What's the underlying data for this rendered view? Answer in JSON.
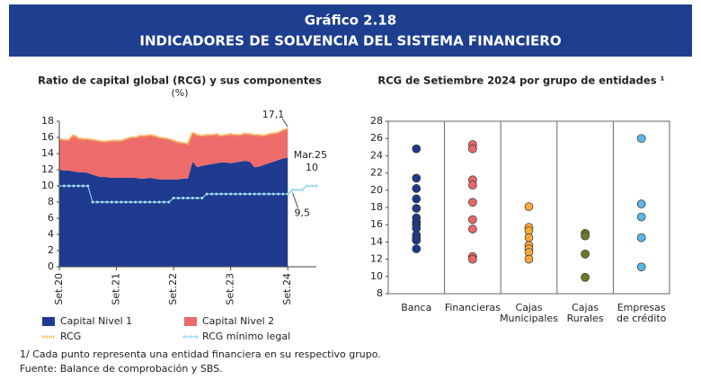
{
  "header": {
    "number": "Gráfico 2.18",
    "title": "INDICADORES DE SOLVENCIA DEL SISTEMA FINANCIERO"
  },
  "chart_data": [
    {
      "type": "area",
      "title": "Ratio de capital global (RCG) y sus componentes",
      "subtitle": "(%)",
      "categories": [
        "Set.20",
        null,
        null,
        null,
        null,
        null,
        null,
        null,
        null,
        null,
        null,
        null,
        "Set.21",
        null,
        null,
        null,
        null,
        null,
        null,
        null,
        null,
        null,
        null,
        null,
        "Set.22",
        null,
        null,
        null,
        null,
        null,
        null,
        null,
        null,
        null,
        null,
        null,
        "Set.23",
        null,
        null,
        null,
        null,
        null,
        null,
        null,
        null,
        null,
        null,
        null,
        "Set.24",
        null,
        null,
        null,
        null,
        null,
        null
      ],
      "ylim": [
        0,
        18
      ],
      "yticks": [
        0,
        2,
        4,
        6,
        8,
        10,
        12,
        14,
        16,
        18
      ],
      "series": [
        {
          "name": "Capital Nivel 1",
          "color": "#1f3b8f",
          "style": "area",
          "values": [
            12.0,
            11.9,
            11.9,
            11.8,
            11.7,
            11.7,
            11.6,
            11.4,
            11.2,
            11.1,
            11.1,
            11.0,
            11.0,
            11.0,
            11.0,
            11.0,
            11.0,
            10.9,
            10.9,
            11.0,
            10.9,
            10.8,
            10.8,
            10.8,
            10.8,
            10.8,
            10.9,
            10.9,
            13.0,
            12.3,
            12.5,
            12.6,
            12.7,
            12.8,
            12.9,
            12.9,
            12.8,
            12.9,
            13.0,
            13.1,
            13.0,
            12.3,
            12.4,
            12.6,
            12.8,
            13.0,
            13.2,
            13.4,
            13.5,
            null,
            null,
            null,
            null,
            null,
            null
          ]
        },
        {
          "name": "Capital Nivel 2",
          "color": "#ee6b6b",
          "style": "area",
          "values": [
            3.8,
            3.8,
            3.8,
            4.5,
            4.2,
            4.1,
            4.2,
            4.3,
            4.4,
            4.4,
            4.4,
            4.6,
            4.6,
            4.6,
            4.8,
            5.0,
            5.0,
            5.3,
            5.3,
            5.3,
            5.3,
            5.2,
            5.1,
            5.0,
            4.8,
            4.6,
            4.4,
            4.3,
            3.6,
            4.0,
            3.7,
            3.7,
            3.6,
            3.6,
            3.3,
            3.4,
            3.6,
            3.4,
            3.3,
            3.4,
            3.4,
            4.0,
            3.9,
            3.6,
            3.6,
            3.5,
            3.4,
            3.5,
            3.6,
            null,
            null,
            null,
            null,
            null,
            null
          ]
        },
        {
          "name": "RCG",
          "color": "#f5b040",
          "style": "line",
          "values": [
            15.8,
            15.7,
            15.7,
            16.3,
            15.9,
            15.8,
            15.8,
            15.7,
            15.6,
            15.5,
            15.5,
            15.6,
            15.6,
            15.6,
            15.8,
            16.0,
            16.0,
            16.2,
            16.2,
            16.3,
            16.2,
            16.0,
            15.9,
            15.8,
            15.6,
            15.4,
            15.3,
            15.2,
            16.6,
            16.3,
            16.2,
            16.3,
            16.3,
            16.4,
            16.2,
            16.3,
            16.4,
            16.3,
            16.3,
            16.5,
            16.4,
            16.3,
            16.3,
            16.2,
            16.4,
            16.5,
            16.6,
            16.9,
            17.1,
            null,
            null,
            null,
            null,
            null,
            null
          ]
        },
        {
          "name": "RCG mínimo legal",
          "color": "#7fc8ea",
          "style": "marker-line",
          "values": [
            10,
            10,
            10,
            10,
            10,
            10,
            10,
            8,
            8,
            8,
            8,
            8,
            8,
            8,
            8,
            8,
            8,
            8,
            8,
            8,
            8,
            8,
            8,
            8,
            8.5,
            8.5,
            8.5,
            8.5,
            8.5,
            8.5,
            8.5,
            9,
            9,
            9,
            9,
            9,
            9,
            9,
            9,
            9,
            9,
            9,
            9,
            9,
            9,
            9,
            9,
            9,
            9,
            9.5,
            9.5,
            9.5,
            10,
            10,
            10
          ]
        }
      ],
      "annotations": [
        "17,1",
        "Mar.25",
        "10",
        "9,5"
      ]
    },
    {
      "type": "strip",
      "title": "RCG de Setiembre 2024 por grupo de entidades ¹",
      "categories": [
        "Banca",
        "Financieras",
        "Cajas Municipales",
        "Cajas Rurales",
        "Empresas de crédito"
      ],
      "colors": [
        "#203a86",
        "#e8676b",
        "#f7a93c",
        "#6d7a2a",
        "#5ab7e6"
      ],
      "ylim": [
        8,
        28
      ],
      "yticks": [
        8,
        10,
        12,
        14,
        16,
        18,
        20,
        22,
        24,
        26,
        28
      ],
      "values": [
        [
          24.8,
          21.4,
          20.2,
          19.0,
          17.9,
          16.8,
          16.3,
          16.0,
          15.6,
          14.8,
          14.4,
          14.2,
          13.2
        ],
        [
          25.3,
          24.8,
          21.2,
          20.6,
          18.6,
          16.6,
          15.5,
          12.3,
          12.0
        ],
        [
          18.1,
          15.7,
          15.3,
          14.5,
          13.6,
          13.2,
          12.8,
          12.0
        ],
        [
          15.0,
          14.7,
          12.6,
          9.9
        ],
        [
          26.0,
          18.4,
          16.9,
          14.5,
          11.1
        ]
      ]
    }
  ],
  "footnotes": [
    "1/ Cada punto representa una entidad financiera en su respectivo grupo.",
    "Fuente: Balance de comprobación y SBS."
  ]
}
